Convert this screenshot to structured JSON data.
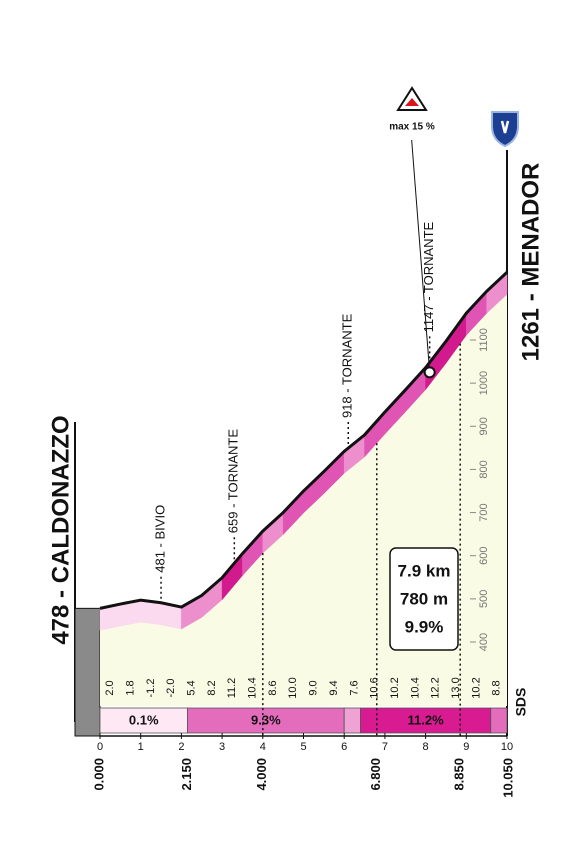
{
  "chart_data": {
    "type": "climb-profile",
    "start_label": "478 - CALDONAZZO",
    "end_label": "1261 - MENADOR",
    "start_elevation": 478,
    "segment_km": 0.5,
    "gradients": [
      2,
      1.8,
      -1.2,
      -2,
      5.4,
      8.2,
      11.2,
      10.4,
      8.6,
      10,
      9,
      9.4,
      7.6,
      10.6,
      10.2,
      10.4,
      12.2,
      13,
      10.2,
      8.8
    ],
    "gradient_labels": [
      "2.0",
      "1.8",
      "-1.2",
      "-2.0",
      "5.4",
      "8.2",
      "11.2",
      "10.4",
      "8.6",
      "10.0",
      "9.0",
      "9.4",
      "7.6",
      "10.6",
      "10.2",
      "10.4",
      "12.2",
      "13.0",
      "10.2",
      "8.8"
    ],
    "xlim": [
      0,
      10
    ],
    "xticks": [
      0,
      1,
      2,
      3,
      4,
      5,
      6,
      7,
      8,
      9,
      10
    ],
    "ylim": [
      400,
      1100
    ],
    "yticks": [
      400,
      500,
      600,
      700,
      800,
      900,
      1000,
      1100
    ],
    "distance_marks": [
      {
        "value": 0,
        "label": "0.000"
      },
      {
        "value": 2.15,
        "label": "2.150"
      },
      {
        "value": 4,
        "label": "4.000"
      },
      {
        "value": 6.8,
        "label": "6.800"
      },
      {
        "value": 8.85,
        "label": "8.850"
      },
      {
        "value": 10.05,
        "label": "10.050"
      }
    ],
    "sectors": [
      {
        "from": 0,
        "to": 2.15,
        "label": "0.1%",
        "color": "#fde8f4"
      },
      {
        "from": 2.15,
        "to": 6.0,
        "label": "9.3%",
        "color": "#e36cbc"
      },
      {
        "from": 6.0,
        "to": 6.4,
        "color": "#eea3d4"
      },
      {
        "from": 6.4,
        "to": 9.6,
        "label": "11.2%",
        "color": "#d81b90"
      },
      {
        "from": 9.6,
        "to": 10,
        "color": "#e36cbc"
      }
    ],
    "annotations": [
      {
        "km": 1.5,
        "label": "481 - BIVIO"
      },
      {
        "km": 3.3,
        "label": "659 - TORNANTE"
      },
      {
        "km": 6.1,
        "label": "918 - TORNANTE"
      },
      {
        "km": 8.1,
        "label": "1147 - TORNANTE"
      }
    ],
    "max_label": "max 15 %",
    "summary": [
      "7.9 km",
      "780 m",
      "9.9%"
    ],
    "credit": "SDS"
  }
}
